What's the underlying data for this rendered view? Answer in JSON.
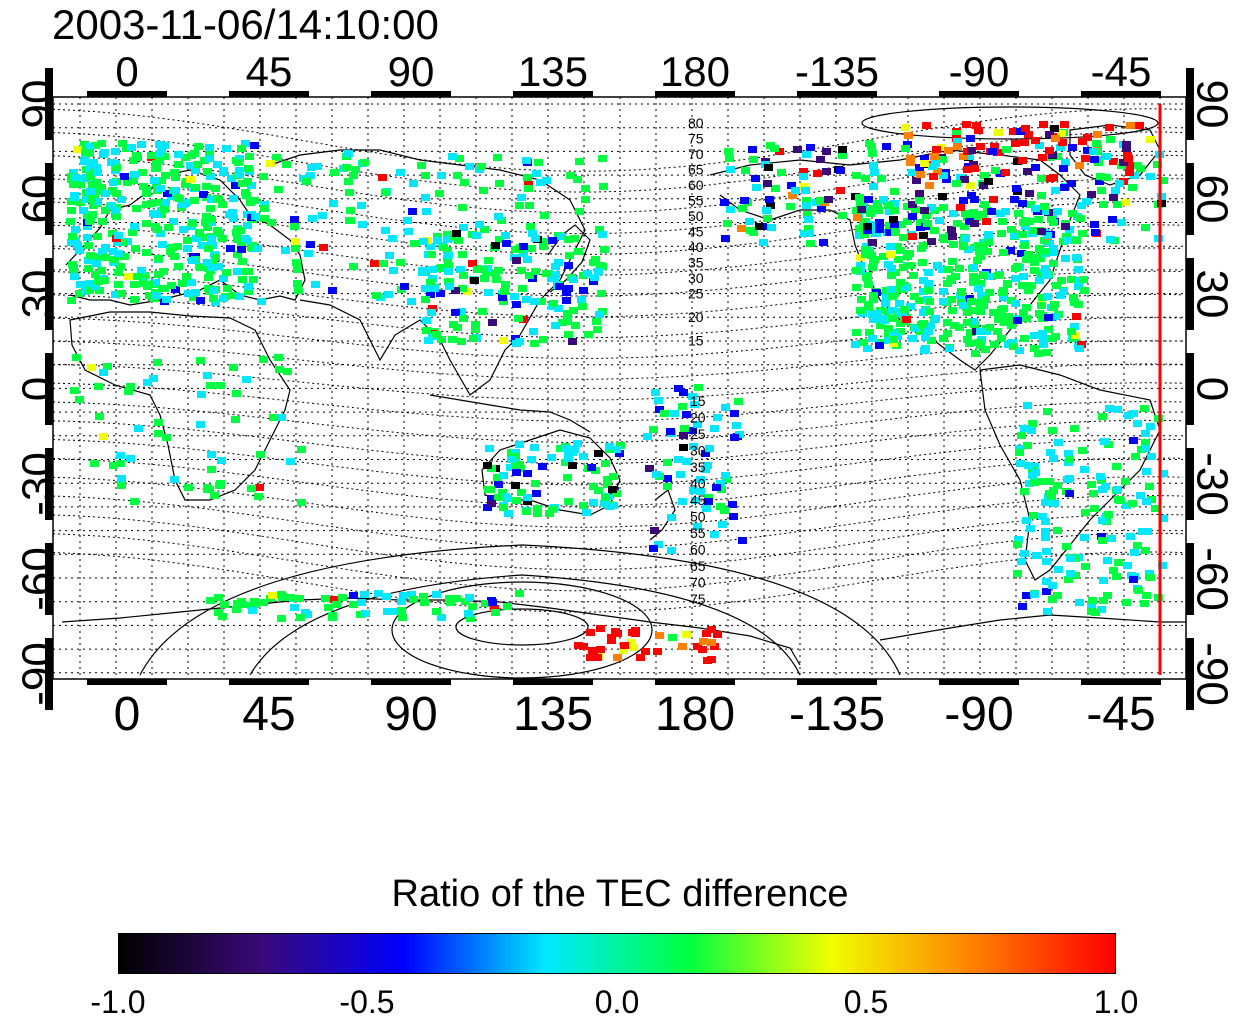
{
  "timestamp": "2003-11-06/14:10:00",
  "lon_ticks": [
    "0",
    "45",
    "90",
    "135",
    "180",
    "-135",
    "-90",
    "-45"
  ],
  "lat_ticks": [
    "90",
    "60",
    "30",
    "0",
    "-30",
    "-60",
    "-90"
  ],
  "contour_labels_north": [
    "80",
    "75",
    "70",
    "65",
    "60",
    "55",
    "50",
    "45",
    "40",
    "35",
    "30",
    "25",
    "20",
    "15"
  ],
  "contour_labels_south": [
    "15",
    "20",
    "25",
    "30",
    "35",
    "40",
    "45",
    "50",
    "55",
    "60",
    "65",
    "70",
    "75"
  ],
  "colorbar": {
    "title": "Ratio of the TEC difference",
    "ticks": [
      "-1.0",
      "-0.5",
      "0.0",
      "0.5",
      "1.0"
    ],
    "colors": [
      "#000000",
      "#3a0a78",
      "#0000ff",
      "#00e8ff",
      "#00ff40",
      "#f0ff00",
      "#ff8000",
      "#ff0000"
    ]
  },
  "terminator_color": "#ff0000"
}
